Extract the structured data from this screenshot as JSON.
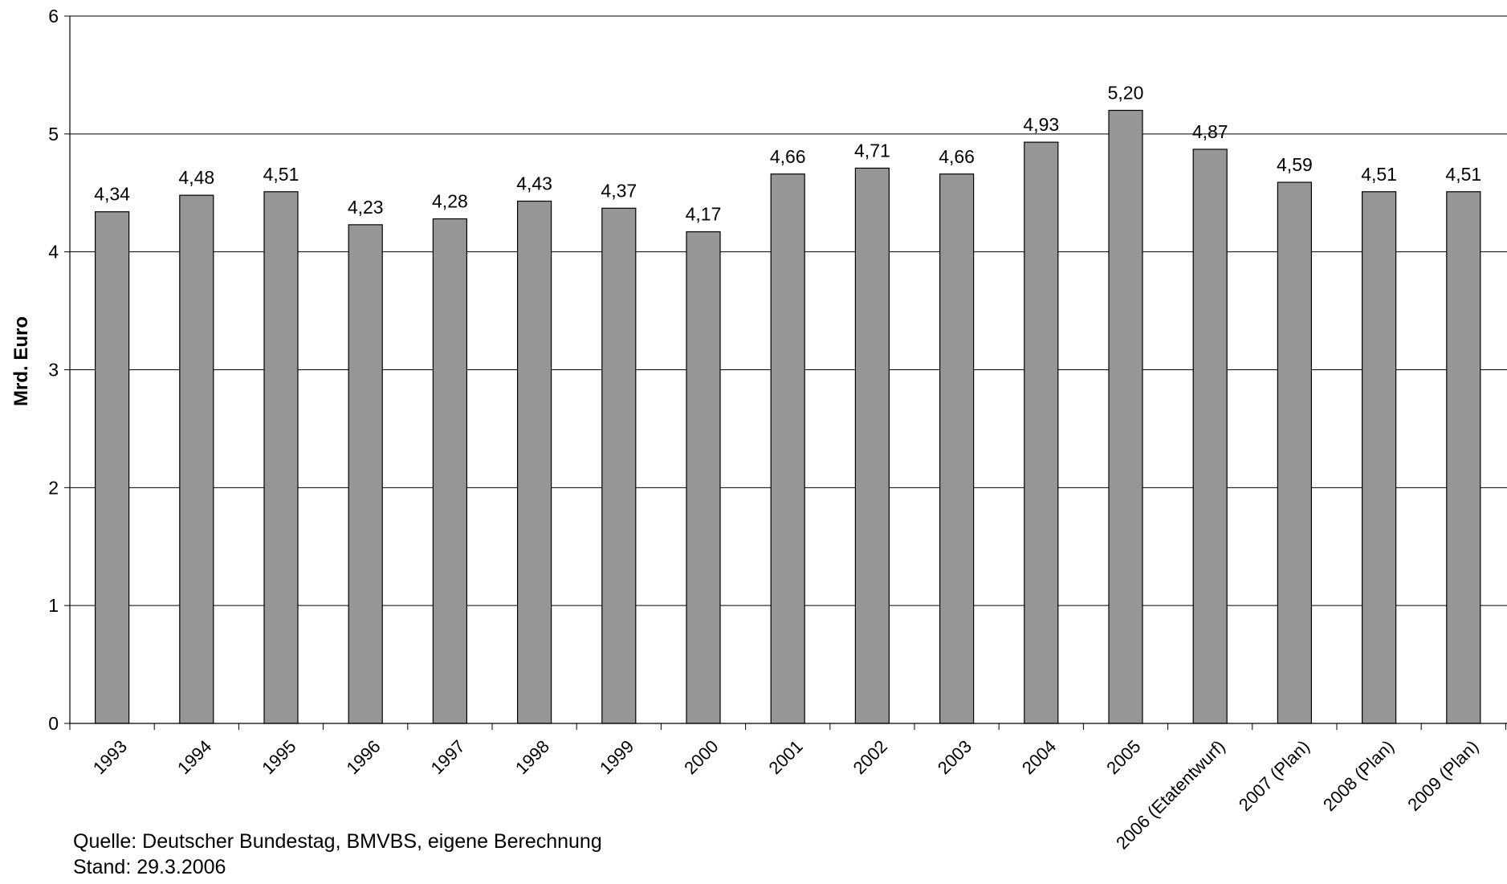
{
  "chart_data": {
    "type": "bar",
    "ylabel": "Mrd. Euro",
    "xlabel": "",
    "ylim": [
      0,
      6
    ],
    "yticks": [
      "0",
      "1",
      "2",
      "3",
      "4",
      "5",
      "6"
    ],
    "grid": true,
    "categories": [
      "1993",
      "1994",
      "1995",
      "1996",
      "1997",
      "1998",
      "1999",
      "2000",
      "2001",
      "2002",
      "2003",
      "2004",
      "2005",
      "2006 (Etatentwurf)",
      "2007 (Plan)",
      "2008 (Plan)",
      "2009 (Plan)"
    ],
    "values": [
      4.34,
      4.48,
      4.51,
      4.23,
      4.28,
      4.43,
      4.37,
      4.17,
      4.66,
      4.71,
      4.66,
      4.93,
      5.2,
      4.87,
      4.59,
      4.51,
      4.51
    ],
    "value_labels": [
      "4,34",
      "4,48",
      "4,51",
      "4,23",
      "4,28",
      "4,43",
      "4,37",
      "4,17",
      "4,66",
      "4,71",
      "4,66",
      "4,93",
      "5,20",
      "4,87",
      "4,59",
      "4,51",
      "4,51"
    ],
    "bar_color": "#969696"
  },
  "footer": {
    "source": "Quelle: Deutscher Bundestag, BMVBS, eigene Berechnung",
    "date": "Stand: 29.3.2006"
  }
}
